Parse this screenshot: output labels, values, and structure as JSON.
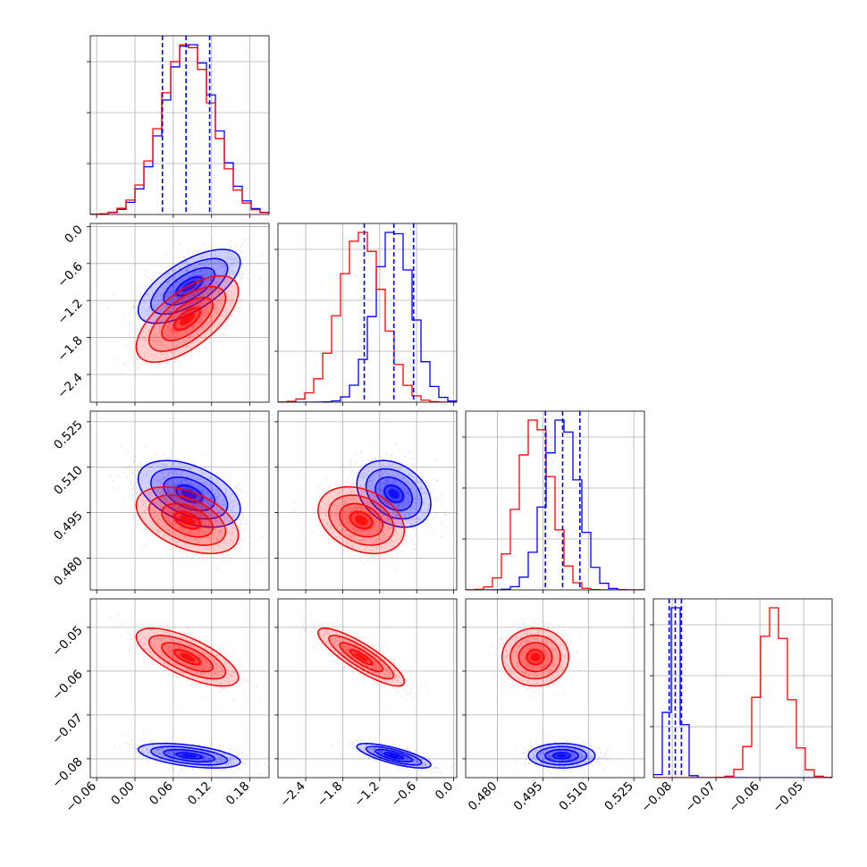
{
  "chart_data": {
    "type": "corner",
    "grid": true,
    "series": [
      {
        "color": "#0000ff"
      },
      {
        "color": "#ff0000"
      }
    ],
    "quantile_lines_color": "#0000ff",
    "params": [
      {
        "range": [
          -0.07,
          0.21
        ],
        "ticks": [
          -0.06,
          0.0,
          0.06,
          0.12,
          0.18
        ],
        "tick_labels": [
          "−0.06",
          "0.00",
          "0.06",
          "0.12",
          "0.18"
        ],
        "quantiles": [
          0.043,
          0.08,
          0.117
        ],
        "blue": {
          "mean": 0.085,
          "sd": 0.04
        },
        "red": {
          "mean": 0.082,
          "sd": 0.04
        }
      },
      {
        "range": [
          -2.85,
          0.05
        ],
        "ticks": [
          -2.4,
          -1.8,
          -1.2,
          -0.6,
          0.0
        ],
        "tick_labels": [
          "−2.4",
          "−1.8",
          "−1.2",
          "−0.6",
          "0.0"
        ],
        "quantiles": [
          -1.45,
          -0.97,
          -0.65
        ],
        "blue": {
          "mean": -0.97,
          "sd": 0.3
        },
        "red": {
          "mean": -1.5,
          "sd": 0.35
        }
      },
      {
        "range": [
          0.4695,
          0.5285
        ],
        "ticks": [
          0.48,
          0.495,
          0.51,
          0.525
        ],
        "tick_labels": [
          "0.480",
          "0.495",
          "0.510",
          "0.525"
        ],
        "quantiles": [
          0.4958,
          0.5015,
          0.5072
        ],
        "blue": {
          "mean": 0.5012,
          "sd": 0.0055
        },
        "red": {
          "mean": 0.4925,
          "sd": 0.0055
        }
      },
      {
        "range": [
          -0.0843,
          -0.0435
        ],
        "ticks": [
          -0.08,
          -0.07,
          -0.06,
          -0.05
        ],
        "tick_labels": [
          "−0.08",
          "−0.07",
          "−0.06",
          "−0.05"
        ],
        "quantiles": [
          -0.0807,
          -0.0793,
          -0.0779
        ],
        "blue": {
          "mean": -0.0793,
          "sd": 0.0014
        },
        "red": {
          "mean": -0.0568,
          "sd": 0.0033
        }
      }
    ],
    "correlations": {
      "blue": {
        "1-0": 0.65,
        "2-0": -0.45,
        "2-1": -0.3,
        "3-0": -0.5,
        "3-1": -0.75,
        "3-2": 0.0
      },
      "red": {
        "1-0": 0.65,
        "2-0": -0.45,
        "2-1": -0.3,
        "3-0": -0.7,
        "3-1": -0.85,
        "3-2": 0.0
      }
    }
  }
}
